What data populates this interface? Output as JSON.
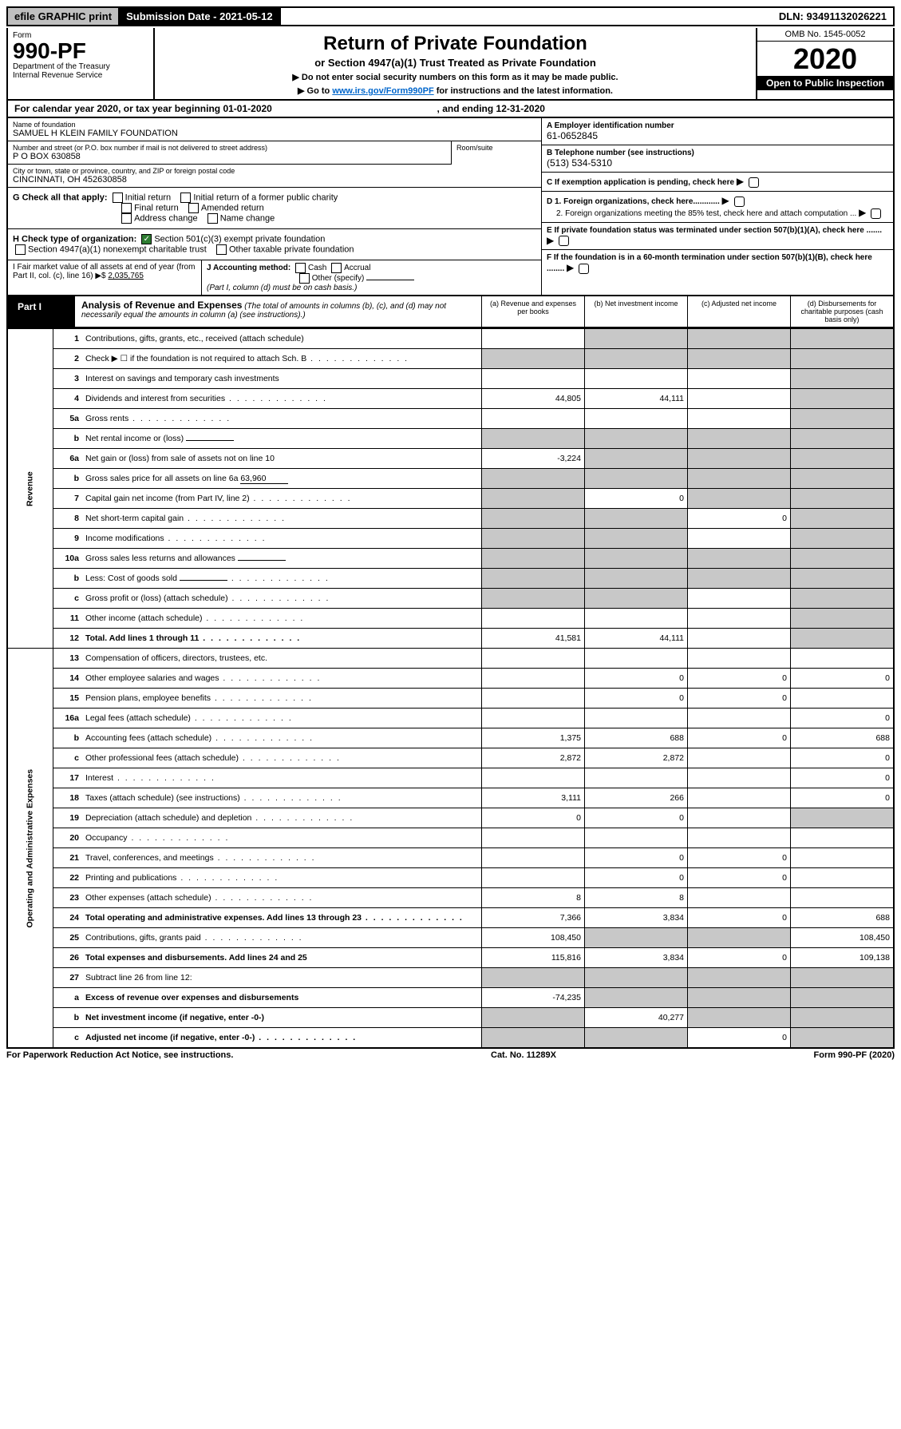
{
  "top": {
    "efile": "efile GRAPHIC print",
    "submission": "Submission Date - 2021-05-12",
    "dln": "DLN: 93491132026221"
  },
  "header": {
    "form_word": "Form",
    "form_no": "990-PF",
    "dept": "Department of the Treasury",
    "irs": "Internal Revenue Service",
    "title": "Return of Private Foundation",
    "subtitle": "or Section 4947(a)(1) Trust Treated as Private Foundation",
    "note1": "▶ Do not enter social security numbers on this form as it may be made public.",
    "note2_pre": "▶ Go to ",
    "note2_link": "www.irs.gov/Form990PF",
    "note2_post": " for instructions and the latest information.",
    "omb": "OMB No. 1545-0052",
    "year": "2020",
    "open": "Open to Public Inspection"
  },
  "calendar": {
    "text_pre": "For calendar year 2020, or tax year beginning ",
    "begin": "01-01-2020",
    "mid": ", and ending ",
    "end": "12-31-2020"
  },
  "entity": {
    "name_lbl": "Name of foundation",
    "name": "SAMUEL H KLEIN FAMILY FOUNDATION",
    "addr_lbl": "Number and street (or P.O. box number if mail is not delivered to street address)",
    "addr": "P O BOX 630858",
    "room_lbl": "Room/suite",
    "city_lbl": "City or town, state or province, country, and ZIP or foreign postal code",
    "city": "CINCINNATI, OH  452630858",
    "ein_lbl": "A Employer identification number",
    "ein": "61-0652845",
    "phone_lbl": "B Telephone number (see instructions)",
    "phone": "(513) 534-5310",
    "c": "C If exemption application is pending, check here",
    "d1": "D 1. Foreign organizations, check here............",
    "d2": "2. Foreign organizations meeting the 85% test, check here and attach computation ...",
    "e": "E If private foundation status was terminated under section 507(b)(1)(A), check here .......",
    "f": "F If the foundation is in a 60-month termination under section 507(b)(1)(B), check here ........"
  },
  "checks": {
    "g_lbl": "G Check all that apply:",
    "g1": "Initial return",
    "g2": "Initial return of a former public charity",
    "g3": "Final return",
    "g4": "Amended return",
    "g5": "Address change",
    "g6": "Name change",
    "h_lbl": "H Check type of organization:",
    "h1": "Section 501(c)(3) exempt private foundation",
    "h2": "Section 4947(a)(1) nonexempt charitable trust",
    "h3": "Other taxable private foundation",
    "i_lbl": "I Fair market value of all assets at end of year (from Part II, col. (c), line 16) ▶$ ",
    "i_val": "2,035,765",
    "j_lbl": "J Accounting method:",
    "j1": "Cash",
    "j2": "Accrual",
    "j3": "Other (specify)",
    "j_note": "(Part I, column (d) must be on cash basis.)"
  },
  "part1": {
    "label": "Part I",
    "title": "Analysis of Revenue and Expenses",
    "note": "(The total of amounts in columns (b), (c), and (d) may not necessarily equal the amounts in column (a) (see instructions).)",
    "col_a": "(a) Revenue and expenses per books",
    "col_b": "(b) Net investment income",
    "col_c": "(c) Adjusted net income",
    "col_d": "(d) Disbursements for charitable purposes (cash basis only)"
  },
  "sections": {
    "revenue": "Revenue",
    "expenses": "Operating and Administrative Expenses"
  },
  "lines": [
    {
      "no": "1",
      "desc": "Contributions, gifts, grants, etc., received (attach schedule)",
      "a": "",
      "b": "grey",
      "c": "grey",
      "d": "grey"
    },
    {
      "no": "2",
      "desc": "Check ▶ ☐ if the foundation is not required to attach Sch. B",
      "a": "grey",
      "b": "grey",
      "c": "grey",
      "d": "grey",
      "dots": true
    },
    {
      "no": "3",
      "desc": "Interest on savings and temporary cash investments",
      "a": "",
      "b": "",
      "c": "",
      "d": "grey"
    },
    {
      "no": "4",
      "desc": "Dividends and interest from securities",
      "a": "44,805",
      "b": "44,111",
      "c": "",
      "d": "grey",
      "dots": true
    },
    {
      "no": "5a",
      "desc": "Gross rents",
      "a": "",
      "b": "",
      "c": "",
      "d": "grey",
      "dots": true
    },
    {
      "no": "b",
      "desc": "Net rental income or (loss)",
      "a": "grey",
      "b": "grey",
      "c": "grey",
      "d": "grey",
      "inline": true
    },
    {
      "no": "6a",
      "desc": "Net gain or (loss) from sale of assets not on line 10",
      "a": "-3,224",
      "b": "grey",
      "c": "grey",
      "d": "grey"
    },
    {
      "no": "b",
      "desc": "Gross sales price for all assets on line 6a",
      "a": "grey",
      "b": "grey",
      "c": "grey",
      "d": "grey",
      "inline": true,
      "inline_val": "63,960"
    },
    {
      "no": "7",
      "desc": "Capital gain net income (from Part IV, line 2)",
      "a": "grey",
      "b": "0",
      "c": "grey",
      "d": "grey",
      "dots": true
    },
    {
      "no": "8",
      "desc": "Net short-term capital gain",
      "a": "grey",
      "b": "grey",
      "c": "0",
      "d": "grey",
      "dots": true
    },
    {
      "no": "9",
      "desc": "Income modifications",
      "a": "grey",
      "b": "grey",
      "c": "",
      "d": "grey",
      "dots": true
    },
    {
      "no": "10a",
      "desc": "Gross sales less returns and allowances",
      "a": "grey",
      "b": "grey",
      "c": "grey",
      "d": "grey",
      "inline": true
    },
    {
      "no": "b",
      "desc": "Less: Cost of goods sold",
      "a": "grey",
      "b": "grey",
      "c": "grey",
      "d": "grey",
      "inline": true,
      "dots": true
    },
    {
      "no": "c",
      "desc": "Gross profit or (loss) (attach schedule)",
      "a": "grey",
      "b": "grey",
      "c": "",
      "d": "grey",
      "dots": true
    },
    {
      "no": "11",
      "desc": "Other income (attach schedule)",
      "a": "",
      "b": "",
      "c": "",
      "d": "grey",
      "dots": true
    },
    {
      "no": "12",
      "desc": "Total. Add lines 1 through 11",
      "a": "41,581",
      "b": "44,111",
      "c": "",
      "d": "grey",
      "bold": true,
      "dots": true
    }
  ],
  "exp_lines": [
    {
      "no": "13",
      "desc": "Compensation of officers, directors, trustees, etc.",
      "a": "",
      "b": "",
      "c": "",
      "d": ""
    },
    {
      "no": "14",
      "desc": "Other employee salaries and wages",
      "a": "",
      "b": "0",
      "c": "0",
      "d": "0",
      "dots": true
    },
    {
      "no": "15",
      "desc": "Pension plans, employee benefits",
      "a": "",
      "b": "0",
      "c": "0",
      "d": "",
      "dots": true
    },
    {
      "no": "16a",
      "desc": "Legal fees (attach schedule)",
      "a": "",
      "b": "",
      "c": "",
      "d": "0",
      "dots": true
    },
    {
      "no": "b",
      "desc": "Accounting fees (attach schedule)",
      "a": "1,375",
      "b": "688",
      "c": "0",
      "d": "688",
      "dots": true
    },
    {
      "no": "c",
      "desc": "Other professional fees (attach schedule)",
      "a": "2,872",
      "b": "2,872",
      "c": "",
      "d": "0",
      "dots": true
    },
    {
      "no": "17",
      "desc": "Interest",
      "a": "",
      "b": "",
      "c": "",
      "d": "0",
      "dots": true
    },
    {
      "no": "18",
      "desc": "Taxes (attach schedule) (see instructions)",
      "a": "3,111",
      "b": "266",
      "c": "",
      "d": "0",
      "dots": true
    },
    {
      "no": "19",
      "desc": "Depreciation (attach schedule) and depletion",
      "a": "0",
      "b": "0",
      "c": "",
      "d": "grey",
      "dots": true
    },
    {
      "no": "20",
      "desc": "Occupancy",
      "a": "",
      "b": "",
      "c": "",
      "d": "",
      "dots": true
    },
    {
      "no": "21",
      "desc": "Travel, conferences, and meetings",
      "a": "",
      "b": "0",
      "c": "0",
      "d": "",
      "dots": true
    },
    {
      "no": "22",
      "desc": "Printing and publications",
      "a": "",
      "b": "0",
      "c": "0",
      "d": "",
      "dots": true
    },
    {
      "no": "23",
      "desc": "Other expenses (attach schedule)",
      "a": "8",
      "b": "8",
      "c": "",
      "d": "",
      "dots": true
    },
    {
      "no": "24",
      "desc": "Total operating and administrative expenses. Add lines 13 through 23",
      "a": "7,366",
      "b": "3,834",
      "c": "0",
      "d": "688",
      "bold": true,
      "dots": true
    },
    {
      "no": "25",
      "desc": "Contributions, gifts, grants paid",
      "a": "108,450",
      "b": "grey",
      "c": "grey",
      "d": "108,450",
      "dots": true
    },
    {
      "no": "26",
      "desc": "Total expenses and disbursements. Add lines 24 and 25",
      "a": "115,816",
      "b": "3,834",
      "c": "0",
      "d": "109,138",
      "bold": true
    },
    {
      "no": "27",
      "desc": "Subtract line 26 from line 12:",
      "a": "grey",
      "b": "grey",
      "c": "grey",
      "d": "grey"
    },
    {
      "no": "a",
      "desc": "Excess of revenue over expenses and disbursements",
      "a": "-74,235",
      "b": "grey",
      "c": "grey",
      "d": "grey",
      "bold": true
    },
    {
      "no": "b",
      "desc": "Net investment income (if negative, enter -0-)",
      "a": "grey",
      "b": "40,277",
      "c": "grey",
      "d": "grey",
      "bold": true
    },
    {
      "no": "c",
      "desc": "Adjusted net income (if negative, enter -0-)",
      "a": "grey",
      "b": "grey",
      "c": "0",
      "d": "grey",
      "bold": true,
      "dots": true
    }
  ],
  "footer": {
    "left": "For Paperwork Reduction Act Notice, see instructions.",
    "mid": "Cat. No. 11289X",
    "right": "Form 990-PF (2020)"
  }
}
